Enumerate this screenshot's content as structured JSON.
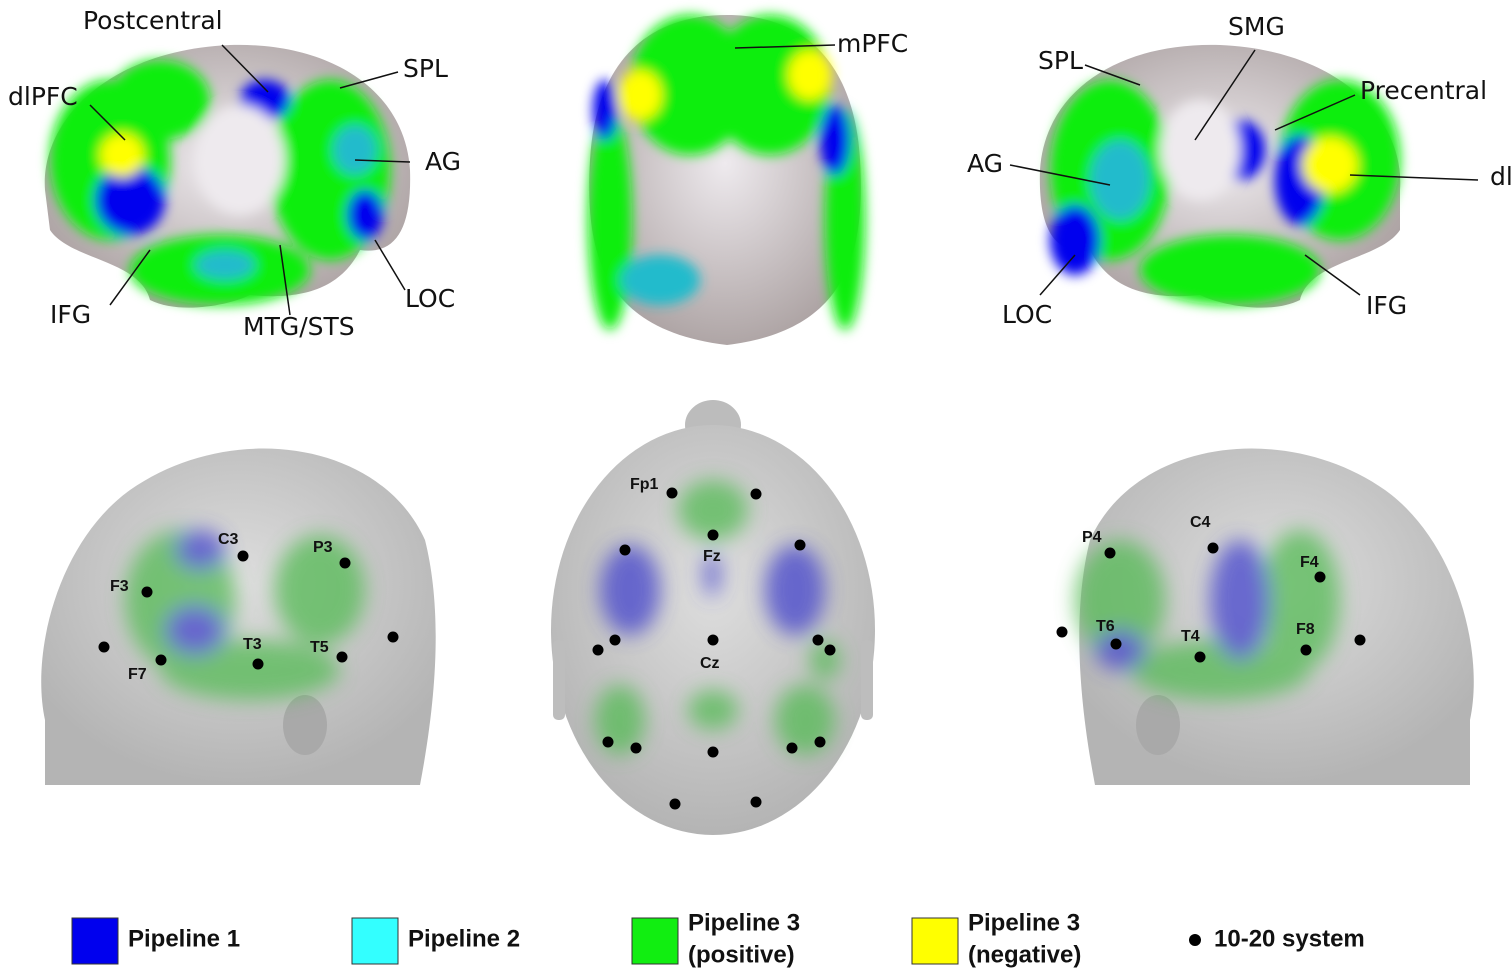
{
  "brain_labels": {
    "left": [
      "Postcentral",
      "dlPFC",
      "SPL",
      "AG",
      "LOC",
      "IFG",
      "MTG/STS"
    ],
    "top": [
      "mPFC"
    ],
    "right": [
      "SMG",
      "SPL",
      "Precentral",
      "AG",
      "dlPFC",
      "LOC",
      "IFG"
    ]
  },
  "electrode_labels": {
    "left": [
      "C3",
      "P3",
      "F3",
      "T3",
      "T5",
      "F7"
    ],
    "top": [
      "Fp1",
      "Fz",
      "Cz"
    ],
    "right": [
      "C4",
      "P4",
      "F4",
      "T6",
      "T4",
      "F8"
    ]
  },
  "legend": [
    {
      "lines": [
        "Pipeline 1"
      ],
      "color": "#0000ee"
    },
    {
      "lines": [
        "Pipeline 2"
      ],
      "color": "#33ffff"
    },
    {
      "lines": [
        "Pipeline 3",
        "(positive)"
      ],
      "color": "#11ee11"
    },
    {
      "lines": [
        "Pipeline 3",
        "(negative)"
      ],
      "color": "#ffff00"
    },
    {
      "lines": [
        "10-20 system"
      ]
    }
  ]
}
